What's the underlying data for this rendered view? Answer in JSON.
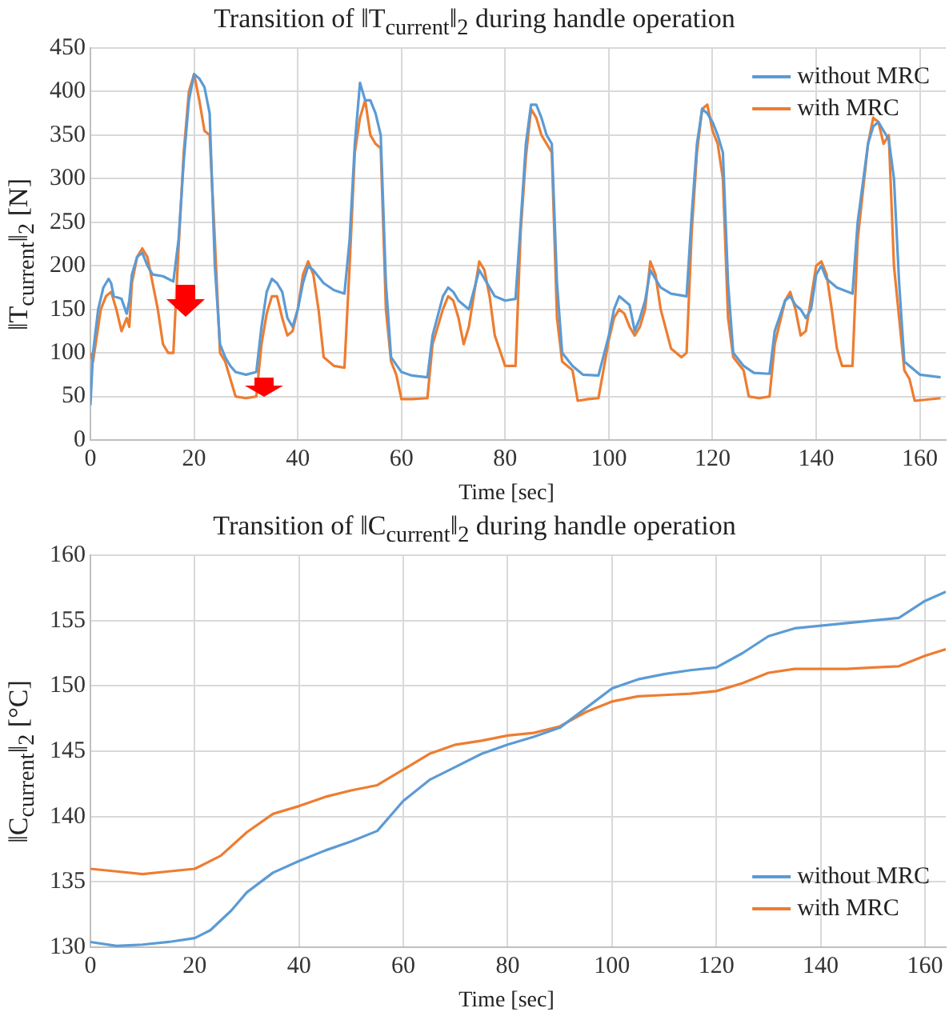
{
  "chart_data": [
    {
      "type": "line",
      "title": "Transition of ‖T$_{current}$‖$_{2}$ during handle operation",
      "xlabel": "Time [sec]",
      "ylabel": "‖T$_{current}$‖$_{2}$ [N]",
      "xlim": [
        0,
        165
      ],
      "xticks": [
        0,
        20,
        40,
        60,
        80,
        100,
        120,
        140,
        160
      ],
      "ylim": [
        0,
        450
      ],
      "yticks": [
        0,
        50,
        100,
        150,
        200,
        250,
        300,
        350,
        400,
        450
      ],
      "grid": true,
      "legend": "top right",
      "marker": "none",
      "line_style": "solid",
      "series": [
        {
          "name": "without MRC",
          "color": "#5b9bd5",
          "x": [
            0,
            0.5,
            1.5,
            2.5,
            3.5,
            4,
            4.5,
            6,
            7,
            7.5,
            8,
            9,
            10,
            11,
            12,
            14,
            16,
            17,
            18,
            19,
            20,
            21,
            22,
            23,
            24,
            25,
            26,
            27,
            28,
            30,
            32,
            33,
            34,
            35,
            36,
            37,
            38,
            39,
            40,
            41,
            42,
            43,
            45,
            47,
            49,
            50,
            51,
            52,
            53,
            54,
            55,
            56,
            57,
            58,
            60,
            62,
            65,
            66,
            68,
            69,
            70,
            71,
            72,
            73,
            75,
            76,
            78,
            80,
            82,
            83,
            84,
            85,
            86,
            87,
            88,
            89,
            90,
            91,
            93,
            95,
            98,
            100,
            101,
            102,
            103,
            104,
            105,
            106,
            107,
            108,
            110,
            112,
            115,
            116,
            117,
            118,
            119,
            120,
            121,
            122,
            123,
            124,
            126,
            128,
            131,
            132,
            134,
            135,
            136,
            137,
            138,
            139,
            140,
            141,
            142,
            144,
            147,
            148,
            150,
            151,
            152,
            153,
            154,
            155,
            156,
            157,
            160,
            164
          ],
          "values": [
            40,
            100,
            150,
            175,
            185,
            180,
            165,
            162,
            145,
            160,
            190,
            210,
            215,
            200,
            190,
            188,
            182,
            230,
            320,
            390,
            420,
            415,
            405,
            375,
            200,
            110,
            95,
            85,
            78,
            75,
            78,
            130,
            170,
            185,
            180,
            170,
            140,
            130,
            150,
            180,
            200,
            195,
            180,
            172,
            168,
            230,
            340,
            410,
            390,
            390,
            375,
            350,
            180,
            95,
            78,
            74,
            72,
            120,
            165,
            175,
            170,
            160,
            155,
            150,
            195,
            185,
            165,
            160,
            162,
            250,
            340,
            385,
            385,
            370,
            350,
            340,
            180,
            100,
            85,
            75,
            74,
            120,
            150,
            165,
            160,
            155,
            125,
            140,
            160,
            195,
            175,
            168,
            165,
            260,
            340,
            380,
            375,
            365,
            350,
            330,
            180,
            100,
            85,
            77,
            76,
            125,
            160,
            165,
            155,
            150,
            140,
            150,
            190,
            200,
            185,
            175,
            168,
            250,
            340,
            360,
            365,
            355,
            345,
            300,
            180,
            90,
            75,
            72
          ]
        },
        {
          "name": "with MRC",
          "color": "#ed7d31",
          "x": [
            0,
            0.5,
            1,
            2,
            3,
            4,
            5,
            6,
            7,
            7.5,
            8,
            9,
            10,
            11,
            12,
            13,
            14,
            15,
            16,
            17,
            18,
            19,
            20,
            21,
            22,
            23,
            24,
            25,
            26,
            27,
            28,
            30,
            32,
            33,
            34,
            35,
            36,
            37,
            38,
            39,
            40,
            41,
            42,
            43,
            44,
            45,
            47,
            49,
            50,
            51,
            52,
            53,
            54,
            55,
            56,
            57,
            58,
            59,
            60,
            62,
            65,
            66,
            68,
            69,
            70,
            71,
            72,
            73,
            75,
            76,
            77,
            78,
            80,
            82,
            83,
            84,
            85,
            86,
            87,
            88,
            89,
            90,
            91,
            93,
            94,
            96,
            98,
            100,
            101,
            102,
            103,
            104,
            105,
            106,
            107,
            108,
            109,
            110,
            112,
            114,
            115,
            116,
            117,
            118,
            119,
            120,
            121,
            122,
            123,
            124,
            126,
            127,
            129,
            131,
            132,
            134,
            135,
            136,
            137,
            138,
            140,
            141,
            142,
            143,
            144,
            145,
            147,
            148,
            150,
            151,
            152,
            153,
            154,
            155,
            156,
            157,
            158,
            159,
            164
          ],
          "values": [
            100,
            90,
            110,
            150,
            165,
            170,
            150,
            125,
            140,
            130,
            180,
            210,
            220,
            210,
            180,
            150,
            110,
            100,
            100,
            220,
            330,
            400,
            420,
            390,
            355,
            350,
            230,
            100,
            90,
            70,
            50,
            48,
            50,
            110,
            145,
            165,
            165,
            140,
            120,
            125,
            150,
            190,
            205,
            190,
            150,
            95,
            85,
            83,
            200,
            330,
            370,
            390,
            350,
            340,
            335,
            150,
            90,
            75,
            47,
            47,
            48,
            110,
            150,
            165,
            160,
            140,
            110,
            130,
            205,
            195,
            165,
            120,
            85,
            85,
            240,
            325,
            380,
            370,
            350,
            340,
            330,
            140,
            90,
            80,
            45,
            47,
            48,
            115,
            140,
            150,
            145,
            130,
            120,
            130,
            150,
            205,
            190,
            150,
            105,
            95,
            100,
            240,
            330,
            380,
            385,
            355,
            340,
            300,
            140,
            95,
            80,
            50,
            48,
            50,
            110,
            160,
            170,
            150,
            120,
            125,
            200,
            205,
            190,
            150,
            105,
            85,
            85,
            230,
            340,
            370,
            365,
            340,
            350,
            200,
            140,
            80,
            70,
            45,
            48
          ]
        }
      ]
    },
    {
      "type": "line",
      "title": "Transition of ‖C$_{current}$‖$_{2}$ during handle operation",
      "xlabel": "Time [sec]",
      "ylabel": "‖C$_{current}$‖$_{2}$ [°C]",
      "xlim": [
        0,
        164
      ],
      "xticks": [
        0,
        20,
        40,
        60,
        80,
        100,
        120,
        140,
        160
      ],
      "ylim": [
        130,
        160
      ],
      "yticks": [
        130,
        135,
        140,
        145,
        150,
        155,
        160
      ],
      "grid": true,
      "legend": "bottom right",
      "marker": "none",
      "line_style": "solid",
      "series": [
        {
          "name": "without MRC",
          "color": "#5b9bd5",
          "x": [
            0,
            5,
            10,
            15,
            20,
            23,
            27,
            30,
            35,
            40,
            45,
            50,
            55,
            60,
            65,
            70,
            75,
            80,
            85,
            90,
            95,
            100,
            105,
            110,
            115,
            120,
            125,
            130,
            135,
            140,
            145,
            150,
            155,
            160,
            164
          ],
          "values": [
            130.4,
            130.1,
            130.2,
            130.4,
            130.7,
            131.3,
            132.8,
            134.2,
            135.7,
            136.6,
            137.4,
            138.1,
            138.9,
            141.2,
            142.8,
            143.8,
            144.8,
            145.5,
            146.1,
            146.8,
            148.3,
            149.8,
            150.5,
            150.9,
            151.2,
            151.4,
            152.5,
            153.8,
            154.4,
            154.6,
            154.8,
            155.0,
            155.2,
            156.5,
            157.2
          ]
        },
        {
          "name": "with MRC",
          "color": "#ed7d31",
          "x": [
            0,
            5,
            10,
            15,
            20,
            25,
            30,
            35,
            40,
            45,
            50,
            55,
            60,
            65,
            70,
            75,
            80,
            85,
            90,
            95,
            100,
            105,
            110,
            115,
            120,
            125,
            130,
            135,
            140,
            145,
            150,
            155,
            160,
            164
          ],
          "values": [
            136.0,
            135.8,
            135.6,
            135.8,
            136.0,
            137.0,
            138.8,
            140.2,
            140.8,
            141.5,
            142.0,
            142.4,
            143.6,
            144.8,
            145.5,
            145.8,
            146.2,
            146.4,
            146.9,
            148.0,
            148.8,
            149.2,
            149.3,
            149.4,
            149.6,
            150.2,
            151.0,
            151.3,
            151.3,
            151.3,
            151.4,
            151.5,
            152.3,
            152.8
          ]
        }
      ]
    }
  ]
}
